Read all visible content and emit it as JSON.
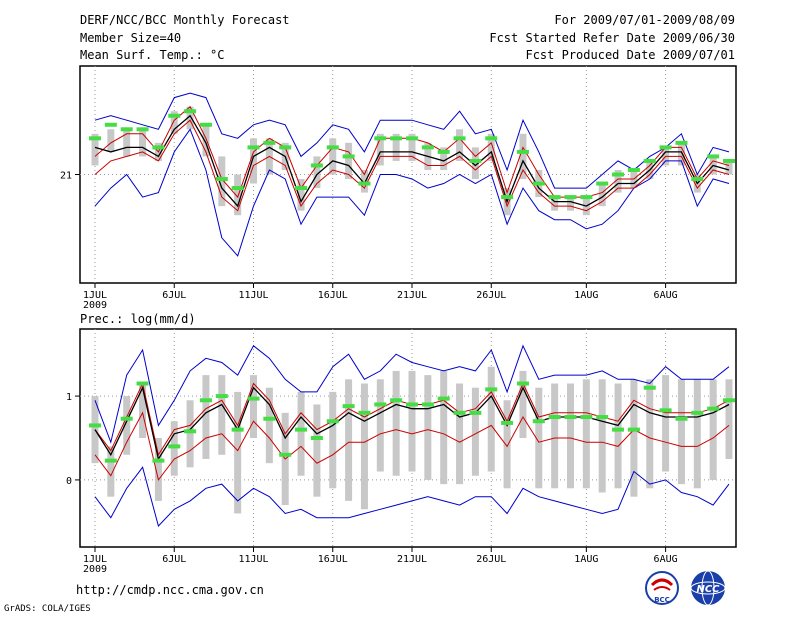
{
  "header": {
    "title": "DERF/NCC/BCC Monthly Forecast",
    "member_size": "Member Size=40",
    "variable": "Mean Surf. Temp.: °C",
    "period": "For 2009/07/01-2009/08/09",
    "started": "Fcst Started Refer Date 2009/06/30",
    "produced": "Fcst Produced Date 2009/07/01"
  },
  "footer": {
    "url": "http://cmdp.ncc.cma.gov.cn",
    "credit": "GrADS: COLA/IGES",
    "logo_left": "BCC",
    "logo_right": "NCC"
  },
  "colors": {
    "ensemble_mean": "#000000",
    "member_line": "#cc0000",
    "envelope": "#0000cc",
    "box": "#c8c8c8",
    "marker": "#44dd44",
    "grid": "#999999"
  },
  "chart_data": [
    {
      "type": "line",
      "title": "Mean Surf. Temp.: °C",
      "xlabel": "",
      "ylabel": "",
      "ylim": [
        19.8,
        22.2
      ],
      "yticks": [
        21
      ],
      "x_range": [
        1,
        41
      ],
      "x_ticks": [
        {
          "x": 1,
          "label": "1JUL"
        },
        {
          "x": 6,
          "label": "6JUL"
        },
        {
          "x": 11,
          "label": "11JUL"
        },
        {
          "x": 16,
          "label": "16JUL"
        },
        {
          "x": 21,
          "label": "21JUL"
        },
        {
          "x": 26,
          "label": "26JUL"
        },
        {
          "x": 32,
          "label": "1AUG"
        },
        {
          "x": 37,
          "label": "6AUG"
        }
      ],
      "year_label": "2009",
      "series": [
        {
          "name": "max",
          "values": [
            21.6,
            21.65,
            21.6,
            21.55,
            21.5,
            21.85,
            21.9,
            21.85,
            21.45,
            21.4,
            21.55,
            21.6,
            21.55,
            21.2,
            21.35,
            21.55,
            21.5,
            21.25,
            21.6,
            21.6,
            21.6,
            21.55,
            21.5,
            21.7,
            21.45,
            21.5,
            21.05,
            21.6,
            21.25,
            20.85,
            20.85,
            20.85,
            21.0,
            21.15,
            21.05,
            21.2,
            21.3,
            21.45,
            21.0,
            21.3,
            21.25
          ]
        },
        {
          "name": "upper",
          "values": [
            21.2,
            21.35,
            21.45,
            21.45,
            21.25,
            21.6,
            21.75,
            21.4,
            20.95,
            20.75,
            21.25,
            21.4,
            21.3,
            20.85,
            21.1,
            21.3,
            21.25,
            21.0,
            21.4,
            21.4,
            21.4,
            21.35,
            21.25,
            21.4,
            21.2,
            21.35,
            20.8,
            21.3,
            21.0,
            20.75,
            20.75,
            20.75,
            20.8,
            20.95,
            20.95,
            21.1,
            21.3,
            21.3,
            20.95,
            21.15,
            21.1
          ]
        },
        {
          "name": "mean",
          "values": [
            21.3,
            21.25,
            21.3,
            21.3,
            21.2,
            21.5,
            21.65,
            21.35,
            20.85,
            20.65,
            21.2,
            21.3,
            21.2,
            20.7,
            21.0,
            21.15,
            21.1,
            20.9,
            21.25,
            21.25,
            21.25,
            21.2,
            21.15,
            21.25,
            21.1,
            21.25,
            20.7,
            21.15,
            20.85,
            20.7,
            20.7,
            20.65,
            20.75,
            20.9,
            20.9,
            21.05,
            21.25,
            21.25,
            20.9,
            21.1,
            21.05
          ]
        },
        {
          "name": "lower",
          "values": [
            21.0,
            21.15,
            21.2,
            21.25,
            21.15,
            21.45,
            21.6,
            21.25,
            20.75,
            20.6,
            21.1,
            21.2,
            21.1,
            20.65,
            20.9,
            21.05,
            21.0,
            20.85,
            21.2,
            21.2,
            21.2,
            21.1,
            21.1,
            21.2,
            21.05,
            21.2,
            20.65,
            21.05,
            20.8,
            20.65,
            20.65,
            20.6,
            20.7,
            20.85,
            20.85,
            21.0,
            21.2,
            21.2,
            20.85,
            21.05,
            21.0
          ]
        },
        {
          "name": "min",
          "values": [
            20.65,
            20.85,
            21.0,
            20.75,
            20.8,
            21.25,
            21.5,
            21.05,
            20.3,
            20.1,
            20.65,
            21.05,
            20.95,
            20.45,
            20.75,
            20.75,
            20.75,
            20.55,
            21.0,
            21.0,
            20.95,
            20.85,
            20.9,
            21.0,
            20.9,
            21.0,
            20.45,
            20.85,
            20.6,
            20.5,
            20.5,
            20.4,
            20.45,
            20.6,
            20.85,
            20.95,
            21.15,
            21.15,
            20.65,
            20.95,
            20.9
          ]
        },
        {
          "name": "box_low",
          "values": [
            21.1,
            21.25,
            21.2,
            21.2,
            21.15,
            21.45,
            21.5,
            21.2,
            20.65,
            20.55,
            20.9,
            21.0,
            21.05,
            20.6,
            20.85,
            21.0,
            20.95,
            20.8,
            21.1,
            21.15,
            21.15,
            21.05,
            21.05,
            21.15,
            20.95,
            21.15,
            20.55,
            20.95,
            20.75,
            20.6,
            20.6,
            20.55,
            20.65,
            20.8,
            20.85,
            20.95,
            21.1,
            21.1,
            20.8,
            21.0,
            21.0
          ]
        },
        {
          "name": "box_high",
          "values": [
            21.45,
            21.5,
            21.5,
            21.5,
            21.35,
            21.7,
            21.75,
            21.55,
            21.2,
            21.0,
            21.4,
            21.4,
            21.35,
            20.95,
            21.2,
            21.4,
            21.35,
            21.05,
            21.45,
            21.45,
            21.45,
            21.35,
            21.3,
            21.5,
            21.3,
            21.45,
            20.85,
            21.45,
            21.05,
            20.75,
            20.75,
            20.75,
            20.9,
            21.05,
            21.05,
            21.15,
            21.3,
            21.35,
            21.0,
            21.2,
            21.15
          ]
        },
        {
          "name": "marker",
          "values": [
            21.4,
            21.55,
            21.5,
            21.5,
            21.3,
            21.65,
            21.7,
            21.55,
            20.95,
            20.85,
            21.3,
            21.35,
            21.3,
            20.85,
            21.1,
            21.3,
            21.2,
            20.9,
            21.4,
            21.4,
            21.4,
            21.3,
            21.25,
            21.4,
            21.15,
            21.4,
            20.75,
            21.25,
            20.9,
            20.75,
            20.75,
            20.75,
            20.9,
            21.0,
            21.05,
            21.15,
            21.3,
            21.35,
            20.95,
            21.2,
            21.15
          ]
        }
      ]
    },
    {
      "type": "line",
      "title": "Prec.: log(mm/d)",
      "xlabel": "",
      "ylabel": "",
      "ylim": [
        -0.8,
        1.8
      ],
      "yticks": [
        0,
        1
      ],
      "x_range": [
        1,
        41
      ],
      "x_ticks": [
        {
          "x": 1,
          "label": "1JUL"
        },
        {
          "x": 6,
          "label": "6JUL"
        },
        {
          "x": 11,
          "label": "11JUL"
        },
        {
          "x": 16,
          "label": "16JUL"
        },
        {
          "x": 21,
          "label": "21JUL"
        },
        {
          "x": 26,
          "label": "26JUL"
        },
        {
          "x": 32,
          "label": "1AUG"
        },
        {
          "x": 37,
          "label": "6AUG"
        }
      ],
      "year_label": "2009",
      "series": [
        {
          "name": "max",
          "values": [
            0.95,
            0.45,
            1.25,
            1.55,
            0.65,
            0.95,
            1.3,
            1.45,
            1.4,
            1.25,
            1.6,
            1.45,
            1.2,
            1.05,
            1.05,
            1.35,
            1.5,
            1.2,
            1.3,
            1.5,
            1.4,
            1.35,
            1.3,
            1.35,
            1.3,
            1.55,
            1.05,
            1.6,
            1.2,
            1.25,
            1.25,
            1.25,
            1.3,
            1.2,
            1.2,
            1.15,
            1.35,
            1.2,
            1.2,
            1.2,
            1.35
          ]
        },
        {
          "name": "upper",
          "values": [
            0.6,
            0.35,
            0.75,
            1.15,
            0.3,
            0.6,
            0.65,
            0.85,
            0.95,
            0.65,
            1.15,
            0.95,
            0.55,
            0.8,
            0.6,
            0.7,
            0.85,
            0.75,
            0.85,
            0.95,
            0.9,
            0.9,
            0.95,
            0.8,
            0.85,
            1.05,
            0.7,
            1.15,
            0.75,
            0.8,
            0.8,
            0.8,
            0.75,
            0.7,
            0.95,
            0.85,
            0.8,
            0.8,
            0.8,
            0.85,
            0.95
          ]
        },
        {
          "name": "mean",
          "values": [
            0.6,
            0.3,
            0.7,
            1.1,
            0.25,
            0.55,
            0.6,
            0.8,
            0.9,
            0.6,
            1.1,
            0.9,
            0.5,
            0.75,
            0.55,
            0.65,
            0.8,
            0.7,
            0.8,
            0.9,
            0.85,
            0.85,
            0.9,
            0.75,
            0.8,
            1.0,
            0.65,
            1.1,
            0.7,
            0.75,
            0.75,
            0.75,
            0.7,
            0.65,
            0.9,
            0.8,
            0.75,
            0.75,
            0.75,
            0.8,
            0.9
          ]
        },
        {
          "name": "lower",
          "values": [
            0.3,
            0.05,
            0.45,
            0.8,
            0.0,
            0.25,
            0.35,
            0.5,
            0.55,
            0.35,
            0.7,
            0.5,
            0.25,
            0.4,
            0.2,
            0.3,
            0.45,
            0.45,
            0.55,
            0.6,
            0.55,
            0.6,
            0.55,
            0.45,
            0.55,
            0.65,
            0.4,
            0.75,
            0.45,
            0.5,
            0.5,
            0.45,
            0.45,
            0.4,
            0.6,
            0.5,
            0.45,
            0.4,
            0.4,
            0.5,
            0.65
          ]
        },
        {
          "name": "min",
          "values": [
            -0.2,
            -0.45,
            -0.1,
            0.15,
            -0.55,
            -0.35,
            -0.25,
            -0.1,
            -0.05,
            -0.25,
            -0.1,
            -0.2,
            -0.4,
            -0.35,
            -0.45,
            -0.45,
            -0.45,
            -0.4,
            -0.35,
            -0.3,
            -0.25,
            -0.2,
            -0.25,
            -0.3,
            -0.2,
            -0.2,
            -0.4,
            -0.1,
            -0.2,
            -0.25,
            -0.3,
            -0.35,
            -0.4,
            -0.35,
            0.1,
            -0.05,
            0.0,
            -0.15,
            -0.2,
            -0.3,
            -0.05
          ]
        },
        {
          "name": "box_low",
          "values": [
            0.2,
            -0.2,
            0.3,
            0.5,
            -0.25,
            0.05,
            0.15,
            0.25,
            0.3,
            -0.4,
            0.5,
            0.2,
            -0.3,
            0.05,
            -0.2,
            -0.1,
            -0.25,
            -0.35,
            0.1,
            0.05,
            0.1,
            0.0,
            -0.05,
            -0.05,
            0.05,
            0.1,
            -0.1,
            0.5,
            -0.1,
            -0.1,
            -0.1,
            -0.1,
            -0.15,
            -0.1,
            -0.2,
            -0.1,
            0.1,
            -0.05,
            -0.1,
            0.0,
            0.25
          ]
        },
        {
          "name": "box_high",
          "values": [
            1.0,
            0.4,
            1.0,
            1.15,
            0.5,
            0.7,
            0.95,
            1.25,
            1.25,
            1.05,
            1.25,
            1.1,
            0.8,
            1.05,
            0.9,
            1.05,
            1.2,
            1.15,
            1.2,
            1.3,
            1.3,
            1.25,
            1.3,
            1.15,
            1.1,
            1.35,
            0.95,
            1.3,
            1.1,
            1.15,
            1.15,
            1.2,
            1.2,
            1.15,
            1.2,
            1.2,
            1.25,
            1.2,
            1.2,
            1.2,
            1.2
          ]
        },
        {
          "name": "marker",
          "values": [
            0.65,
            0.23,
            0.73,
            1.15,
            0.23,
            0.4,
            0.58,
            0.95,
            1.0,
            0.6,
            0.97,
            0.73,
            0.3,
            0.6,
            0.5,
            0.7,
            0.88,
            0.8,
            0.9,
            0.95,
            0.9,
            0.9,
            0.97,
            0.8,
            0.8,
            1.08,
            0.68,
            1.15,
            0.7,
            0.75,
            0.75,
            0.75,
            0.75,
            0.6,
            0.6,
            1.1,
            0.83,
            0.73,
            0.8,
            0.85,
            0.95
          ]
        }
      ]
    }
  ]
}
